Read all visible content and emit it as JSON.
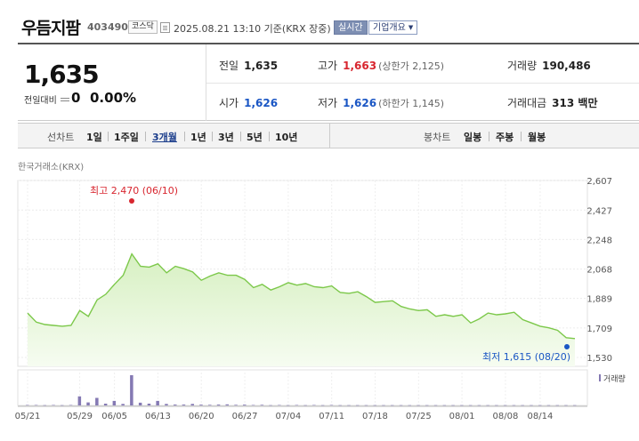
{
  "header": {
    "stock_name": "우듬지팜",
    "stock_code": "403490",
    "market": "코스닥",
    "date_info": "2025.08.21 13:10 기준(KRX 장중)",
    "realtime_label": "실시간",
    "company_info_label": "기업개요"
  },
  "quote": {
    "price": "1,635",
    "change_label": "전일대비",
    "change_value": "0",
    "change_pct": "0.00%",
    "prev_close_label": "전일",
    "prev_close": "1,635",
    "high_label": "고가",
    "high": "1,663",
    "upper_limit_text": "(상한가 2,125)",
    "volume_label": "거래량",
    "volume": "190,486",
    "open_label": "시가",
    "open": "1,626",
    "low_label": "저가",
    "low": "1,626",
    "lower_limit_text": "(하한가 1,145)",
    "trade_value_label": "거래대금",
    "trade_value": "313 백만"
  },
  "tabs": {
    "line_title": "선차트",
    "line_periods": [
      "1일",
      "1주일",
      "3개월",
      "1년",
      "3년",
      "5년",
      "10년"
    ],
    "active_period": "3개월",
    "candle_title": "봉차트",
    "candle_periods": [
      "일봉",
      "주봉",
      "월봉"
    ]
  },
  "exchange_label": "한국거래소(KRX)",
  "colors": {
    "line": "#7cc84a",
    "area_top": "#d7f0c2",
    "area_bottom": "#f6fcf1",
    "volume_bar": "#8479b3",
    "high_marker": "#d8262f",
    "low_marker": "#1a56c4"
  },
  "chart_data": {
    "type": "area",
    "x": [
      "05/21",
      "05/22",
      "05/23",
      "05/26",
      "05/27",
      "05/28",
      "05/29",
      "05/30",
      "06/02",
      "06/04",
      "06/05",
      "06/09",
      "06/10",
      "06/11",
      "06/12",
      "06/13",
      "06/16",
      "06/17",
      "06/18",
      "06/19",
      "06/20",
      "06/23",
      "06/24",
      "06/25",
      "06/26",
      "06/27",
      "06/30",
      "07/01",
      "07/02",
      "07/03",
      "07/04",
      "07/07",
      "07/08",
      "07/09",
      "07/10",
      "07/11",
      "07/14",
      "07/15",
      "07/16",
      "07/17",
      "07/18",
      "07/21",
      "07/22",
      "07/23",
      "07/24",
      "07/25",
      "07/28",
      "07/29",
      "07/30",
      "07/31",
      "08/01",
      "08/04",
      "08/05",
      "08/06",
      "08/07",
      "08/08",
      "08/11",
      "08/12",
      "08/13",
      "08/14",
      "08/18",
      "08/19",
      "08/20",
      "08/21"
    ],
    "series": [
      {
        "values": [
          1800,
          1745,
          1730,
          1725,
          1720,
          1725,
          1815,
          1780,
          1880,
          1915,
          1975,
          2030,
          2160,
          2085,
          2080,
          2100,
          2045,
          2085,
          2070,
          2050,
          2000,
          2025,
          2045,
          2030,
          2030,
          2005,
          1955,
          1975,
          1940,
          1960,
          1985,
          1970,
          1980,
          1960,
          1955,
          1965,
          1925,
          1920,
          1930,
          1900,
          1865,
          1870,
          1875,
          1840,
          1825,
          1815,
          1820,
          1780,
          1790,
          1780,
          1790,
          1740,
          1765,
          1800,
          1790,
          1795,
          1805,
          1760,
          1740,
          1720,
          1710,
          1695,
          1650,
          1645
        ]
      }
    ],
    "volume": [
      3,
      3,
      2,
      3,
      2,
      3,
      60,
      20,
      50,
      12,
      30,
      10,
      200,
      18,
      12,
      30,
      10,
      6,
      6,
      10,
      5,
      4,
      6,
      7,
      4,
      5,
      3,
      4,
      2,
      3,
      2,
      3,
      2,
      3,
      2,
      3,
      2,
      2,
      2,
      2,
      2,
      2,
      2,
      2,
      2,
      2,
      2,
      2,
      2,
      2,
      2,
      2,
      2,
      2,
      2,
      2,
      2,
      2,
      2,
      2,
      2,
      2,
      2,
      2
    ],
    "y_ticks": [
      "2,607",
      "2,427",
      "2,248",
      "2,068",
      "1,889",
      "1,709",
      "1,530"
    ],
    "ylim": [
      1530,
      2607
    ],
    "x_ticks": [
      "05/21",
      "05/29",
      "06/05",
      "06/13",
      "06/20",
      "06/27",
      "07/04",
      "07/11",
      "07/18",
      "07/25",
      "08/01",
      "08/08",
      "08/14"
    ],
    "high_annotation": "최고 2,470 (06/10)",
    "low_annotation": "최저 1,615 (08/20)",
    "volume_legend": "거래량",
    "grid": true
  }
}
